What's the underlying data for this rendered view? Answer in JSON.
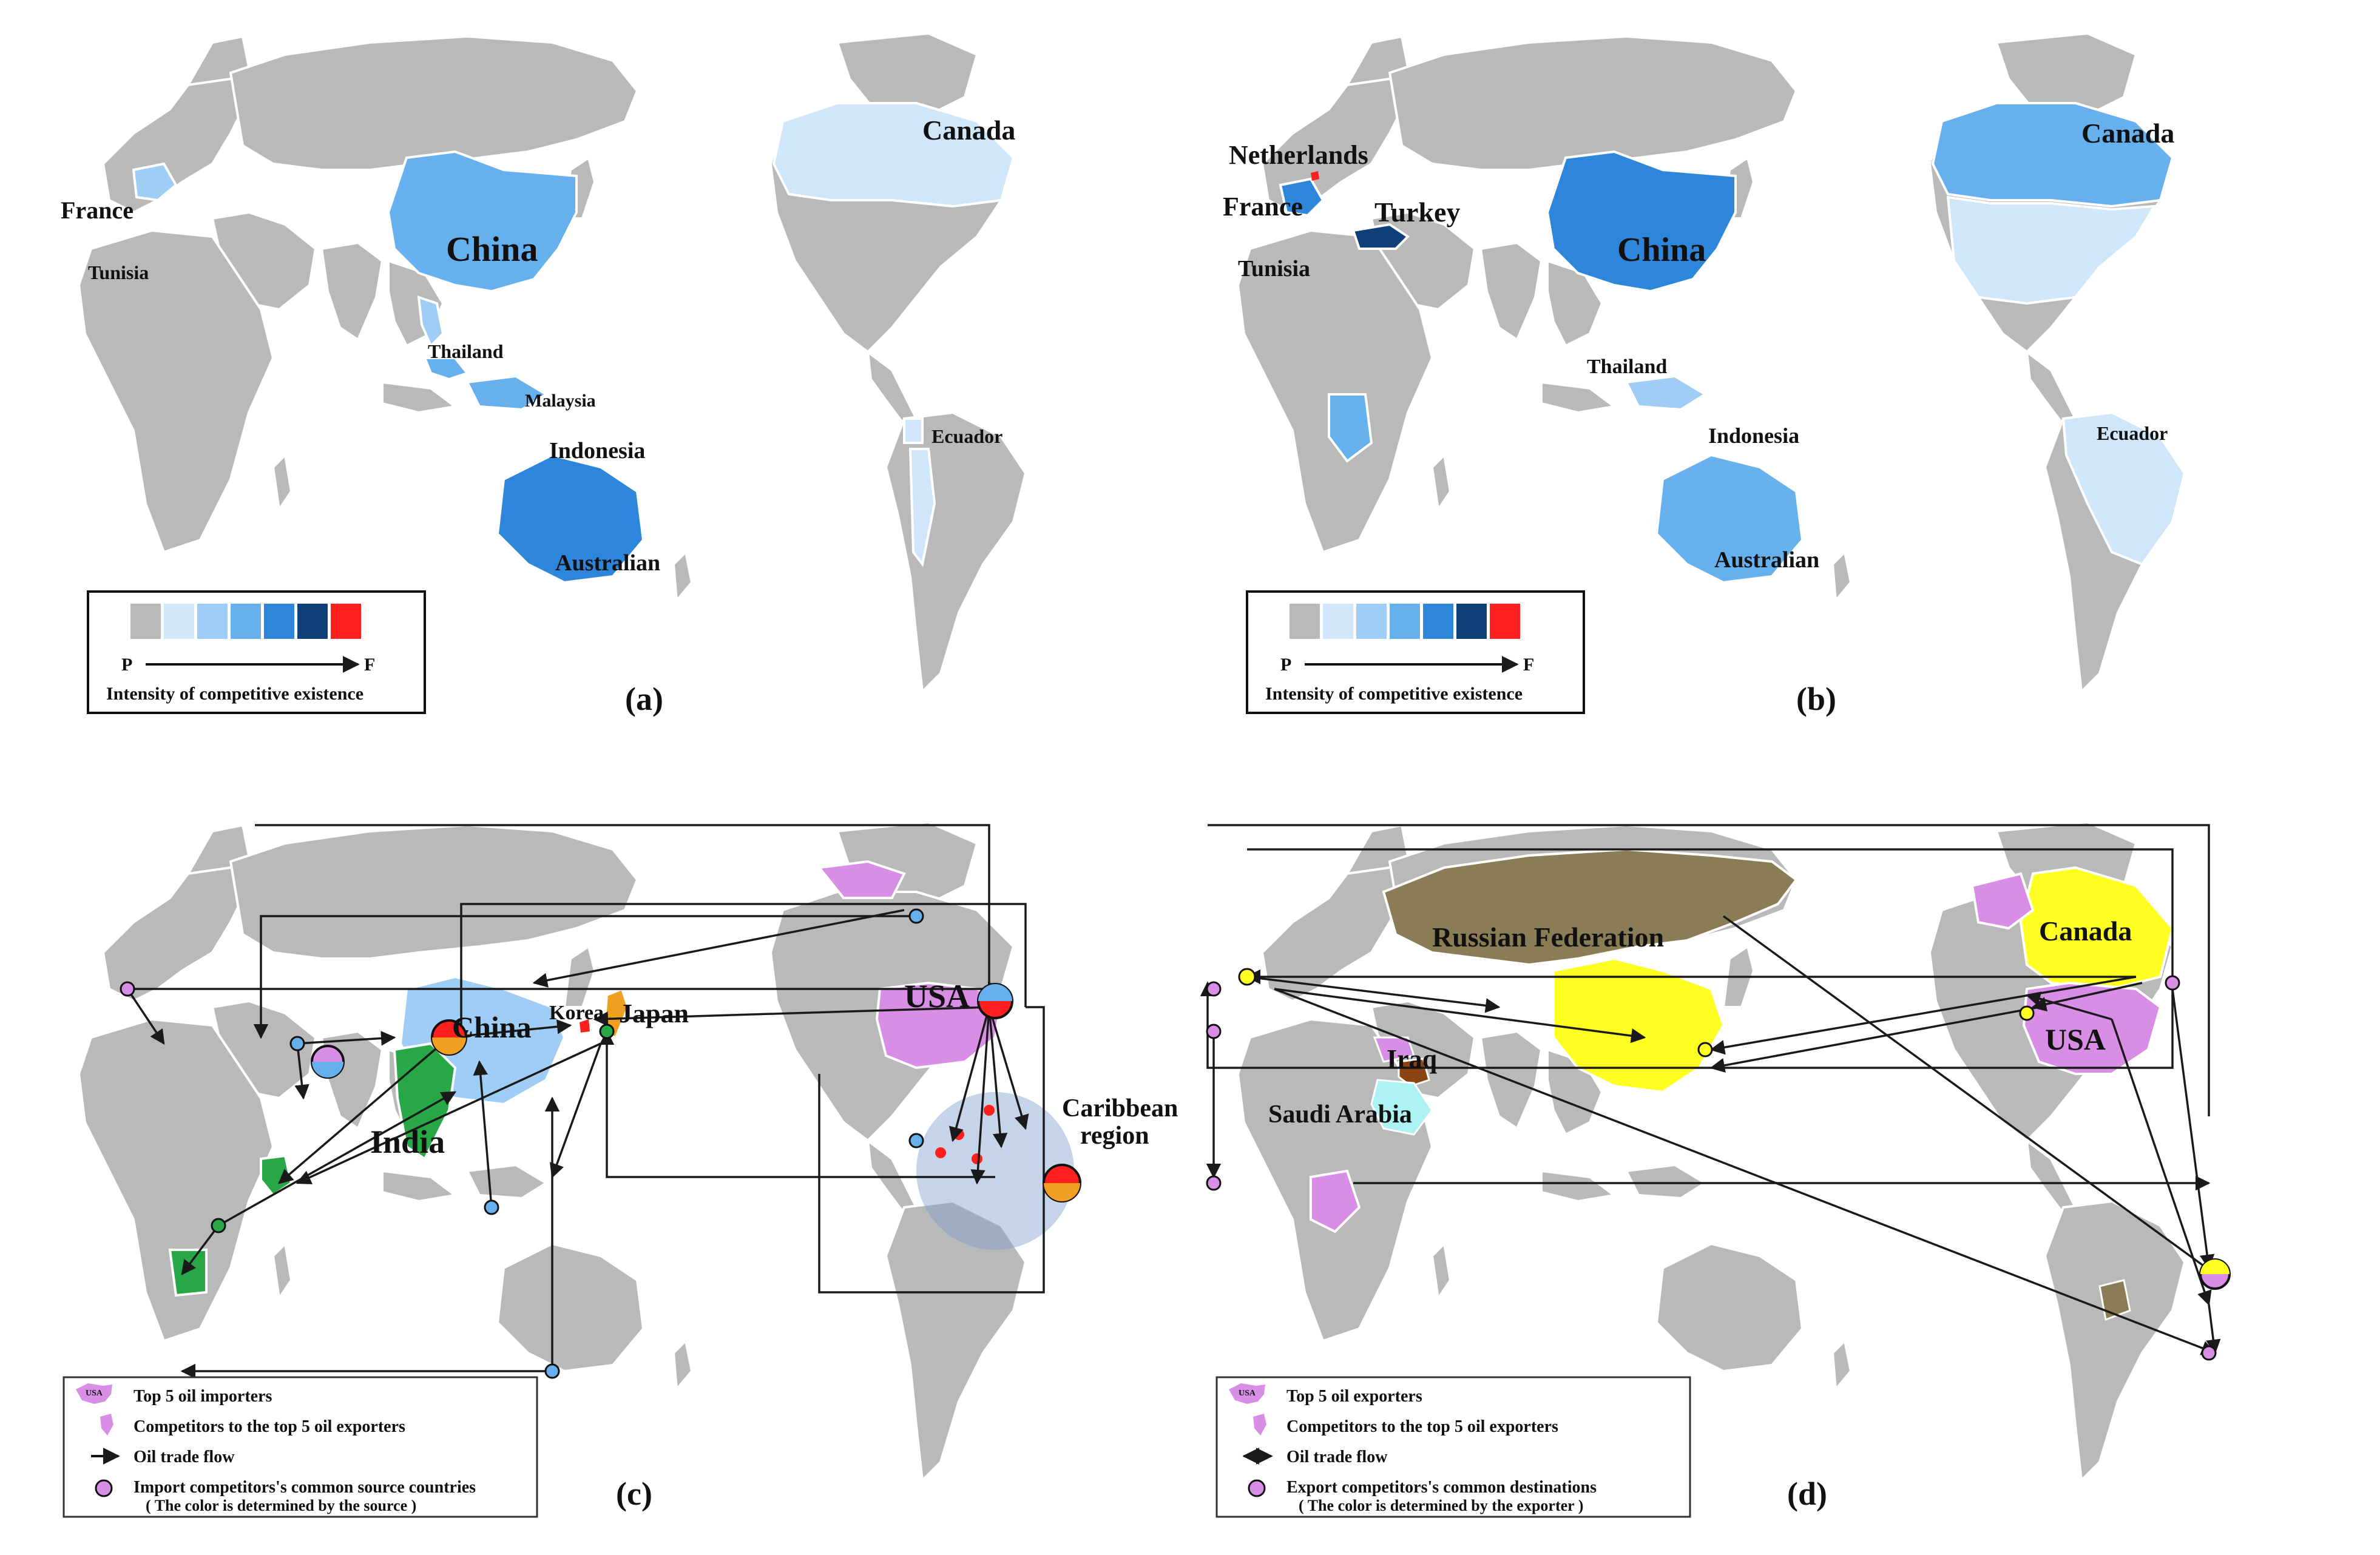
{
  "colors": {
    "gray": "#b9b9b9",
    "blue_1": "#cfe6fb",
    "blue_2": "#9fcdf5",
    "blue_3": "#66b0ee",
    "blue_4": "#2e86da",
    "blue_5": "#1d5fae",
    "blue_6": "#0e3f78",
    "red": "#ff1f1f",
    "violet": "#d98ee6",
    "green": "#27a745",
    "orange": "#f0a020",
    "yellow": "#ffff22",
    "olive": "#8a7d55",
    "cyan": "#aef3f3",
    "brown": "#8b4513",
    "caribbean_circle": "#7f9fcf"
  },
  "panel_a": {
    "tag": "(a)",
    "labels": [
      "France",
      "Tunisia",
      "China",
      "Thailand",
      "Malaysia",
      "Indonesia",
      "Australian",
      "Canada",
      "Ecuador"
    ],
    "legend": {
      "low": "P",
      "high": "F",
      "caption": "Intensity of competitive existence"
    }
  },
  "panel_b": {
    "tag": "(b)",
    "labels": [
      "Netherlands",
      "France",
      "Turkey",
      "Tunisia",
      "China",
      "Thailand",
      "Indonesia",
      "Australian",
      "Canada",
      "Ecuador"
    ],
    "legend": {
      "low": "P",
      "high": "F",
      "caption": "Intensity of competitive existence"
    }
  },
  "panel_c": {
    "tag": "(c)",
    "labels": [
      "China",
      "Korea",
      "Japan",
      "USA",
      "India",
      "Caribbean",
      "region"
    ],
    "legend": [
      "Top 5 oil importers",
      "Competitors to the top 5 oil exporters",
      "Oil trade flow",
      "Import competitors's common source countries",
      "( The color is determined by the source )"
    ],
    "legend_icon_text": "USA"
  },
  "panel_d": {
    "tag": "(d)",
    "labels": [
      "Russian Federation",
      "Canada",
      "USA",
      "Iraq",
      "Saudi Arabia"
    ],
    "legend": [
      "Top 5 oil exporters",
      "Competitors to the top 5 oil exporters",
      "Oil trade flow",
      "Export competitors's common destinations",
      "( The color is determined by the exporter )"
    ],
    "legend_icon_text": "USA"
  }
}
